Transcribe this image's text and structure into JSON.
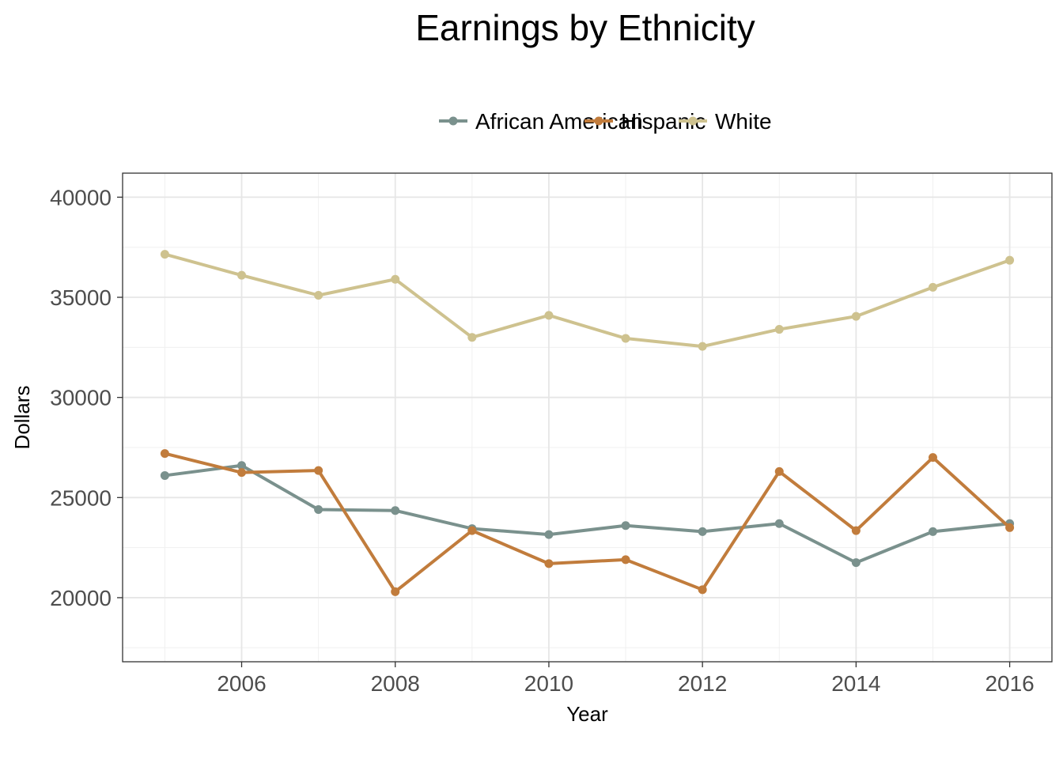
{
  "chart_data": {
    "type": "line",
    "title": "Earnings by Ethnicity",
    "xlabel": "Year",
    "ylabel": "Dollars",
    "x": [
      2005,
      2006,
      2007,
      2008,
      2009,
      2010,
      2011,
      2012,
      2013,
      2014,
      2015,
      2016
    ],
    "xticks": [
      2006,
      2008,
      2010,
      2012,
      2014,
      2016
    ],
    "yticks": [
      20000,
      25000,
      30000,
      35000,
      40000
    ],
    "xlim": [
      2004.45,
      2016.55
    ],
    "ylim": [
      16800,
      41200
    ],
    "grid": true,
    "legend_position": "top",
    "series": [
      {
        "name": "African American",
        "color": "#7A918D",
        "values": [
          26100,
          26600,
          24400,
          24350,
          23450,
          23150,
          23600,
          23300,
          23700,
          21750,
          23300,
          23700
        ]
      },
      {
        "name": "Hispanic",
        "color": "#C17C3C",
        "values": [
          27200,
          26250,
          26350,
          20300,
          23350,
          21700,
          21900,
          20400,
          26300,
          23350,
          27000,
          23500
        ]
      },
      {
        "name": "White",
        "color": "#CEC28F",
        "values": [
          37150,
          36100,
          35100,
          35900,
          33000,
          34100,
          32950,
          32550,
          33400,
          34050,
          35500,
          36850
        ]
      }
    ]
  }
}
